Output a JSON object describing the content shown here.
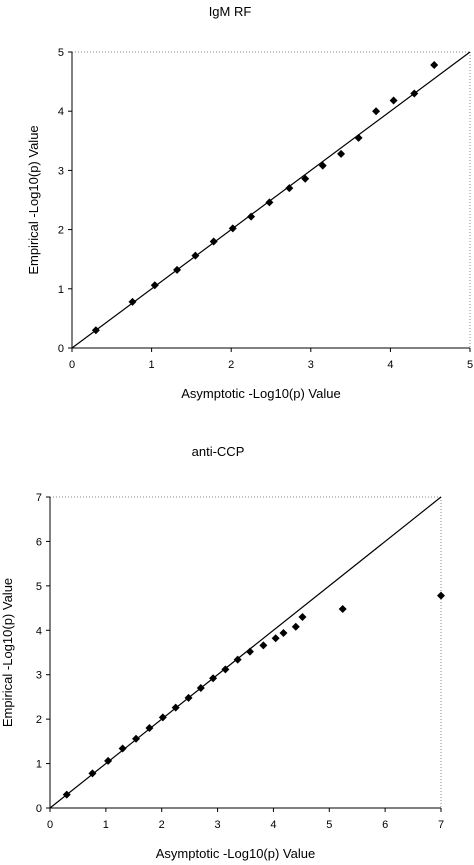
{
  "chart_data": [
    {
      "type": "scatter",
      "title": "IgM RF",
      "xlabel": "Asymptotic -Log10(p) Value",
      "ylabel": "Empirical -Log10(p) Value",
      "xlim": [
        0,
        5
      ],
      "ylim": [
        0,
        5
      ],
      "xticks": [
        "0",
        "1",
        "2",
        "3",
        "4",
        "5"
      ],
      "yticks": [
        "0",
        "1",
        "2",
        "3",
        "4",
        "5"
      ],
      "reference_line": "y = x",
      "grid": false,
      "legend": "none",
      "marker": "diamond",
      "marker_color": "#000000",
      "x": [
        0.3,
        0.76,
        1.04,
        1.32,
        1.55,
        1.78,
        2.02,
        2.25,
        2.48,
        2.73,
        2.93,
        3.15,
        3.38,
        3.6,
        3.82,
        4.04,
        4.3,
        4.55
      ],
      "y": [
        0.3,
        0.78,
        1.06,
        1.32,
        1.56,
        1.8,
        2.02,
        2.22,
        2.46,
        2.7,
        2.86,
        3.08,
        3.28,
        3.55,
        4.0,
        4.18,
        4.3,
        4.78
      ]
    },
    {
      "type": "scatter",
      "title": "anti-CCP",
      "xlabel": "Asymptotic -Log10(p) Value",
      "ylabel": "Empirical -Log10(p) Value",
      "xlim": [
        0,
        7
      ],
      "ylim": [
        0,
        7
      ],
      "xticks": [
        "0",
        "1",
        "2",
        "3",
        "4",
        "5",
        "6",
        "7"
      ],
      "yticks": [
        "0",
        "1",
        "2",
        "3",
        "4",
        "5",
        "6",
        "7"
      ],
      "reference_line": "y = x",
      "grid": false,
      "legend": "none",
      "marker": "diamond",
      "marker_color": "#000000",
      "x": [
        0.3,
        0.76,
        1.04,
        1.3,
        1.54,
        1.78,
        2.02,
        2.25,
        2.48,
        2.7,
        2.92,
        3.14,
        3.36,
        3.58,
        3.82,
        4.04,
        4.18,
        4.4,
        4.52,
        5.24,
        7.0
      ],
      "y": [
        0.3,
        0.78,
        1.06,
        1.34,
        1.56,
        1.8,
        2.04,
        2.26,
        2.48,
        2.7,
        2.92,
        3.12,
        3.34,
        3.52,
        3.66,
        3.82,
        3.94,
        4.08,
        4.3,
        4.48,
        4.78
      ]
    }
  ]
}
